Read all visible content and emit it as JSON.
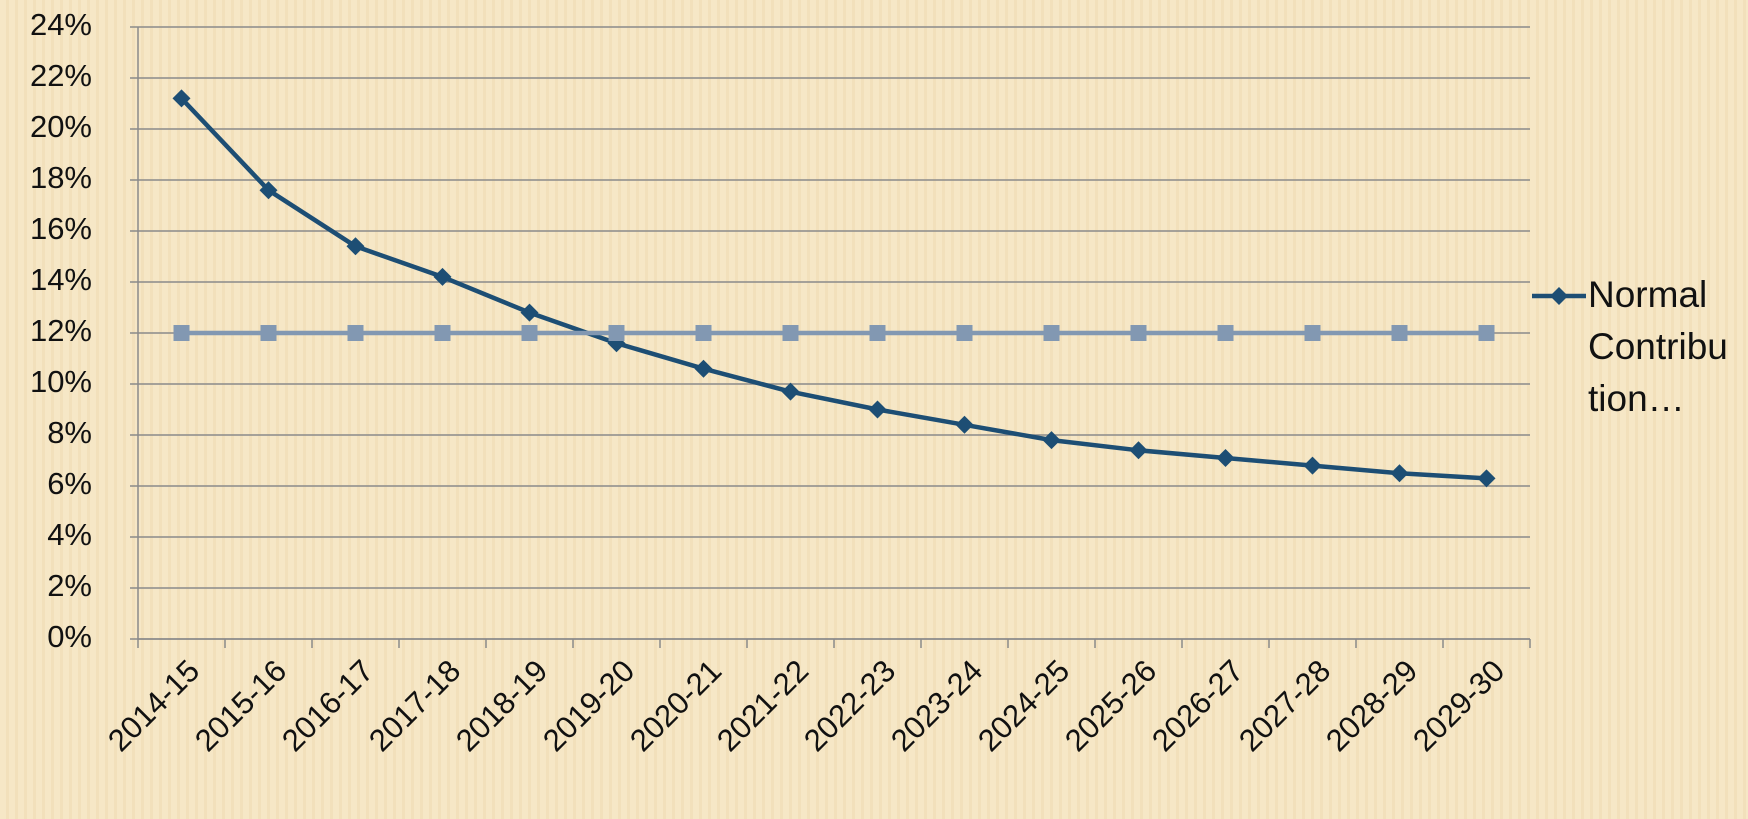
{
  "chart_data": {
    "type": "line",
    "categories": [
      "2014-15",
      "2015-16",
      "2016-17",
      "2017-18",
      "2018-19",
      "2019-20",
      "2020-21",
      "2021-22",
      "2022-23",
      "2023-24",
      "2024-25",
      "2025-26",
      "2026-27",
      "2027-28",
      "2028-29",
      "2029-30"
    ],
    "series": [
      {
        "name": "Normal Contribution…",
        "color": "#1d4e74",
        "marker": "diamond",
        "values": [
          21.2,
          17.6,
          15.4,
          14.2,
          12.8,
          11.6,
          10.6,
          9.7,
          9.0,
          8.4,
          7.8,
          7.4,
          7.1,
          6.8,
          6.5,
          6.3
        ]
      },
      {
        "color": "#8298b2",
        "marker": "square",
        "values": [
          12,
          12,
          12,
          12,
          12,
          12,
          12,
          12,
          12,
          12,
          12,
          12,
          12,
          12,
          12,
          12
        ]
      }
    ],
    "ylim": [
      0,
      24
    ],
    "yticks": [
      {
        "value": 0,
        "label": "0%"
      },
      {
        "value": 2,
        "label": "2%"
      },
      {
        "value": 4,
        "label": "4%"
      },
      {
        "value": 6,
        "label": "6%"
      },
      {
        "value": 8,
        "label": "8%"
      },
      {
        "value": 10,
        "label": "10%"
      },
      {
        "value": 12,
        "label": "12%"
      },
      {
        "value": 14,
        "label": "14%"
      },
      {
        "value": 16,
        "label": "16%"
      },
      {
        "value": 18,
        "label": "18%"
      },
      {
        "value": 20,
        "label": "20%"
      },
      {
        "value": 22,
        "label": "22%"
      },
      {
        "value": 24,
        "label": "24%"
      }
    ],
    "grid": true,
    "legend": "right"
  }
}
